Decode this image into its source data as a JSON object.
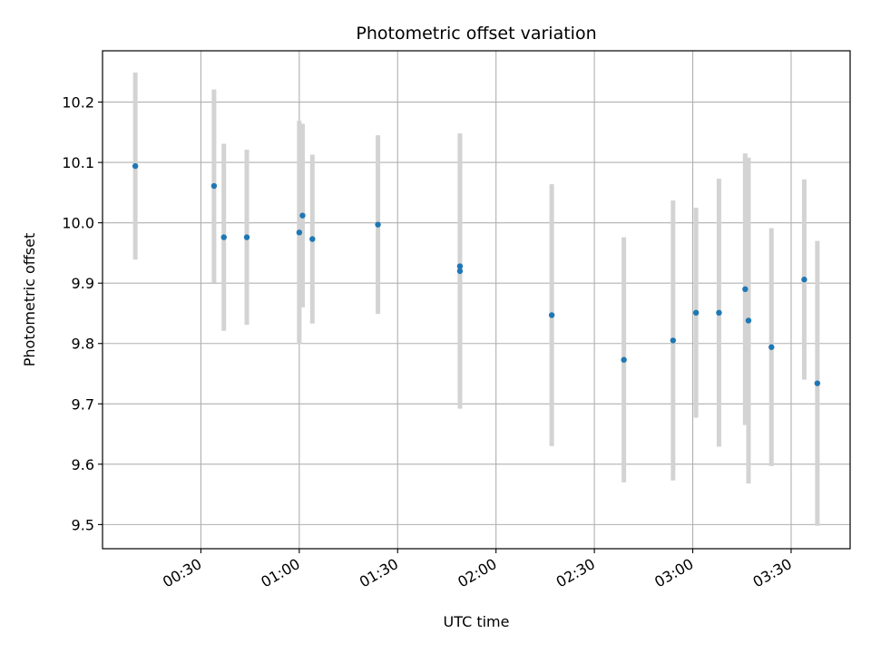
{
  "chart_data": {
    "type": "scatter",
    "title": "Photometric offset variation",
    "xlabel": "UTC time",
    "ylabel": "Photometric offset",
    "xlim": [
      "00:00",
      "03:48"
    ],
    "ylim": [
      9.46,
      10.285
    ],
    "x_ticks": [
      "00:30",
      "01:00",
      "01:30",
      "02:00",
      "02:30",
      "03:00",
      "03:30"
    ],
    "y_ticks": [
      9.5,
      9.6,
      9.7,
      9.8,
      9.9,
      10.0,
      10.1,
      10.2
    ],
    "grid": true,
    "colors": {
      "point": "#1f77b4",
      "errorbar": "#d3d3d3",
      "grid": "#b0b0b0"
    },
    "points": [
      {
        "x": "00:10",
        "y": 10.094,
        "err": 0.155
      },
      {
        "x": "00:34",
        "y": 10.061,
        "err": 0.16
      },
      {
        "x": "00:37",
        "y": 9.976,
        "err": 0.155
      },
      {
        "x": "00:44",
        "y": 9.976,
        "err": 0.145
      },
      {
        "x": "01:00",
        "y": 9.984,
        "err": 0.185
      },
      {
        "x": "01:01",
        "y": 10.012,
        "err": 0.152
      },
      {
        "x": "01:04",
        "y": 9.973,
        "err": 0.14
      },
      {
        "x": "01:24",
        "y": 9.997,
        "err": 0.148
      },
      {
        "x": "01:49",
        "y": 9.92,
        "err": 0.228
      },
      {
        "x": "01:49",
        "y": 9.928,
        "err": 0.212
      },
      {
        "x": "02:17",
        "y": 9.847,
        "err": 0.217
      },
      {
        "x": "02:39",
        "y": 9.773,
        "err": 0.203
      },
      {
        "x": "02:54",
        "y": 9.805,
        "err": 0.232
      },
      {
        "x": "03:01",
        "y": 9.851,
        "err": 0.174
      },
      {
        "x": "03:08",
        "y": 9.851,
        "err": 0.222
      },
      {
        "x": "03:16",
        "y": 9.89,
        "err": 0.225
      },
      {
        "x": "03:17",
        "y": 9.838,
        "err": 0.27
      },
      {
        "x": "03:24",
        "y": 9.794,
        "err": 0.197
      },
      {
        "x": "03:34",
        "y": 9.906,
        "err": 0.166
      },
      {
        "x": "03:38",
        "y": 9.734,
        "err": 0.236
      }
    ]
  }
}
